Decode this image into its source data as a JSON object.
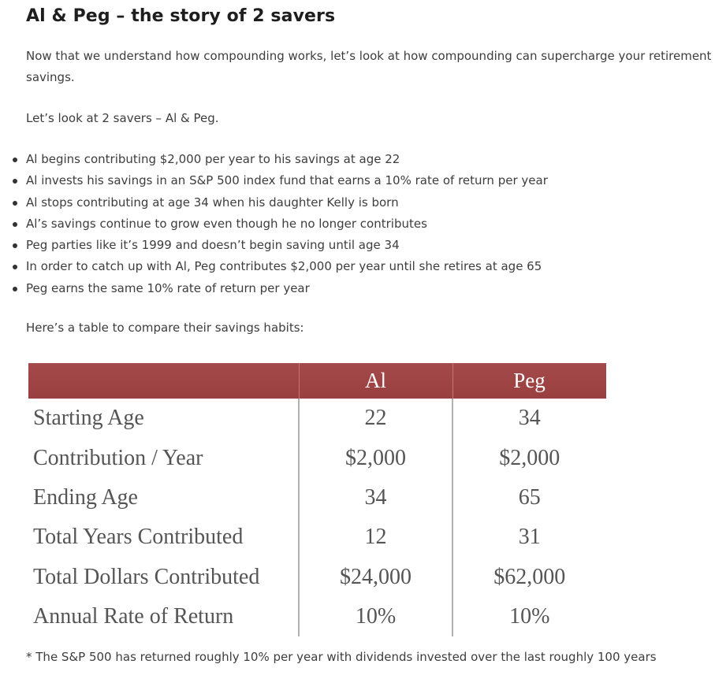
{
  "title": "Al & Peg – the story of 2 savers",
  "intro": "Now that we understand how compounding works, let’s look at how compounding can supercharge your retirement savings.",
  "lead": "Let’s look at 2 savers – Al & Peg.",
  "bullets": [
    "Al begins contributing $2,000 per year to his savings at age 22",
    "Al invests his savings in an S&P 500 index fund that earns a 10% rate of return per year",
    "Al stops contributing at age 34 when his daughter Kelly is born",
    "Al’s savings continue to grow even though he no longer contributes",
    "Peg parties like it’s 1999 and doesn’t begin saving until age 34",
    "In order to catch up with Al, Peg contributes $2,000 per year until she retires at age 65",
    "Peg earns the same 10% rate of return per year"
  ],
  "table_intro": "Here’s a table to compare their savings habits:",
  "table": {
    "headers": [
      "",
      "Al",
      "Peg"
    ],
    "rows": [
      {
        "label": "Starting Age",
        "al": "22",
        "peg": "34"
      },
      {
        "label": "Contribution / Year",
        "al": "$2,000",
        "peg": "$2,000"
      },
      {
        "label": "Ending Age",
        "al": "34",
        "peg": "65"
      },
      {
        "label": "Total Years Contributed",
        "al": "12",
        "peg": "31"
      },
      {
        "label": "Total Dollars Contributed",
        "al": "$24,000",
        "peg": "$62,000"
      },
      {
        "label": "Annual Rate of Return",
        "al": "10%",
        "peg": "10%"
      }
    ],
    "header_color": "#9e4242"
  },
  "footnote": "* The S&P 500 has returned roughly 10% per year with dividends invested over the last roughly 100 years"
}
